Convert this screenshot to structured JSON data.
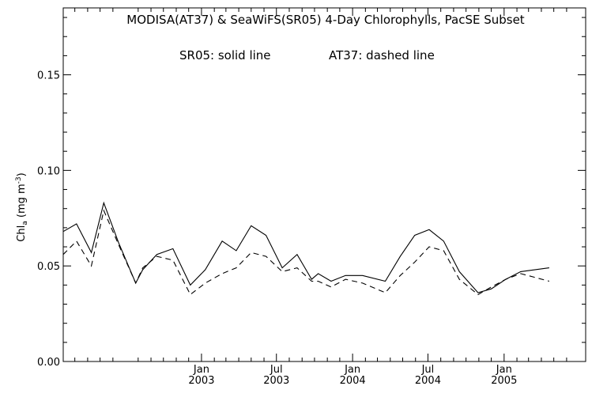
{
  "chart_data": {
    "type": "line",
    "title": "MODISA(AT37) & SeaWiFS(SR05) 4-Day Chlorophylls, PacSE Subset",
    "legend_text": {
      "sr05": "SR05: solid line",
      "at37": "AT37: dashed line"
    },
    "ylabel": {
      "base": "Chl",
      "sub": "a",
      "units": " (mg m",
      "sup": "-3",
      "close": ")"
    },
    "ylim": [
      0.0,
      0.185
    ],
    "yticks": [
      {
        "value": 0.0,
        "label": "0.00"
      },
      {
        "value": 0.05,
        "label": "0.05"
      },
      {
        "value": 0.1,
        "label": "0.10"
      },
      {
        "value": 0.15,
        "label": "0.15"
      }
    ],
    "xlim": [
      "2002-02-01",
      "2005-07-17"
    ],
    "xticks": [
      {
        "date": "2003-01-01",
        "line1": "Jan",
        "line2": "2003"
      },
      {
        "date": "2003-07-01",
        "line1": "Jul",
        "line2": "2003"
      },
      {
        "date": "2004-01-01",
        "line1": "Jan",
        "line2": "2004"
      },
      {
        "date": "2004-07-01",
        "line1": "Jul",
        "line2": "2004"
      },
      {
        "date": "2005-01-01",
        "line1": "Jan",
        "line2": "2005"
      }
    ],
    "grid": false,
    "series": [
      {
        "name": "SR05",
        "style": "solid",
        "points": [
          {
            "x": "2002-02-01",
            "y": 0.068
          },
          {
            "x": "2002-03-05",
            "y": 0.072
          },
          {
            "x": "2002-04-10",
            "y": 0.057
          },
          {
            "x": "2002-05-10",
            "y": 0.083
          },
          {
            "x": "2002-06-15",
            "y": 0.062
          },
          {
            "x": "2002-07-26",
            "y": 0.041
          },
          {
            "x": "2002-08-12",
            "y": 0.048
          },
          {
            "x": "2002-09-15",
            "y": 0.056
          },
          {
            "x": "2002-10-24",
            "y": 0.059
          },
          {
            "x": "2002-12-05",
            "y": 0.04
          },
          {
            "x": "2003-01-10",
            "y": 0.048
          },
          {
            "x": "2003-02-20",
            "y": 0.063
          },
          {
            "x": "2003-03-26",
            "y": 0.058
          },
          {
            "x": "2003-05-01",
            "y": 0.071
          },
          {
            "x": "2003-06-06",
            "y": 0.066
          },
          {
            "x": "2003-07-15",
            "y": 0.049
          },
          {
            "x": "2003-08-20",
            "y": 0.056
          },
          {
            "x": "2003-09-24",
            "y": 0.043
          },
          {
            "x": "2003-10-10",
            "y": 0.046
          },
          {
            "x": "2003-11-10",
            "y": 0.042
          },
          {
            "x": "2003-12-15",
            "y": 0.045
          },
          {
            "x": "2004-01-25",
            "y": 0.045
          },
          {
            "x": "2004-03-20",
            "y": 0.042
          },
          {
            "x": "2004-04-25",
            "y": 0.055
          },
          {
            "x": "2004-05-30",
            "y": 0.066
          },
          {
            "x": "2004-07-04",
            "y": 0.069
          },
          {
            "x": "2004-08-08",
            "y": 0.063
          },
          {
            "x": "2004-09-15",
            "y": 0.047
          },
          {
            "x": "2004-10-30",
            "y": 0.036
          },
          {
            "x": "2004-12-01",
            "y": 0.038
          },
          {
            "x": "2005-01-05",
            "y": 0.043
          },
          {
            "x": "2005-02-10",
            "y": 0.047
          },
          {
            "x": "2005-04-20",
            "y": 0.049
          }
        ]
      },
      {
        "name": "AT37",
        "style": "dashed",
        "points": [
          {
            "x": "2002-02-01",
            "y": 0.056
          },
          {
            "x": "2002-03-05",
            "y": 0.063
          },
          {
            "x": "2002-04-10",
            "y": 0.05
          },
          {
            "x": "2002-05-10",
            "y": 0.079
          },
          {
            "x": "2002-06-15",
            "y": 0.061
          },
          {
            "x": "2002-07-26",
            "y": 0.041
          },
          {
            "x": "2002-08-12",
            "y": 0.049
          },
          {
            "x": "2002-09-15",
            "y": 0.055
          },
          {
            "x": "2002-10-24",
            "y": 0.053
          },
          {
            "x": "2002-12-05",
            "y": 0.035
          },
          {
            "x": "2003-01-10",
            "y": 0.041
          },
          {
            "x": "2003-02-20",
            "y": 0.046
          },
          {
            "x": "2003-03-26",
            "y": 0.049
          },
          {
            "x": "2003-05-01",
            "y": 0.057
          },
          {
            "x": "2003-06-06",
            "y": 0.055
          },
          {
            "x": "2003-07-15",
            "y": 0.047
          },
          {
            "x": "2003-08-20",
            "y": 0.049
          },
          {
            "x": "2003-09-24",
            "y": 0.042
          },
          {
            "x": "2003-10-10",
            "y": 0.042
          },
          {
            "x": "2003-11-10",
            "y": 0.039
          },
          {
            "x": "2003-12-15",
            "y": 0.043
          },
          {
            "x": "2004-01-25",
            "y": 0.041
          },
          {
            "x": "2004-03-20",
            "y": 0.036
          },
          {
            "x": "2004-04-25",
            "y": 0.045
          },
          {
            "x": "2004-05-30",
            "y": 0.052
          },
          {
            "x": "2004-07-04",
            "y": 0.06
          },
          {
            "x": "2004-08-08",
            "y": 0.058
          },
          {
            "x": "2004-09-15",
            "y": 0.043
          },
          {
            "x": "2004-10-30",
            "y": 0.035
          },
          {
            "x": "2004-12-01",
            "y": 0.039
          },
          {
            "x": "2005-01-05",
            "y": 0.043
          },
          {
            "x": "2005-02-10",
            "y": 0.046
          },
          {
            "x": "2005-04-20",
            "y": 0.042
          }
        ]
      }
    ]
  }
}
